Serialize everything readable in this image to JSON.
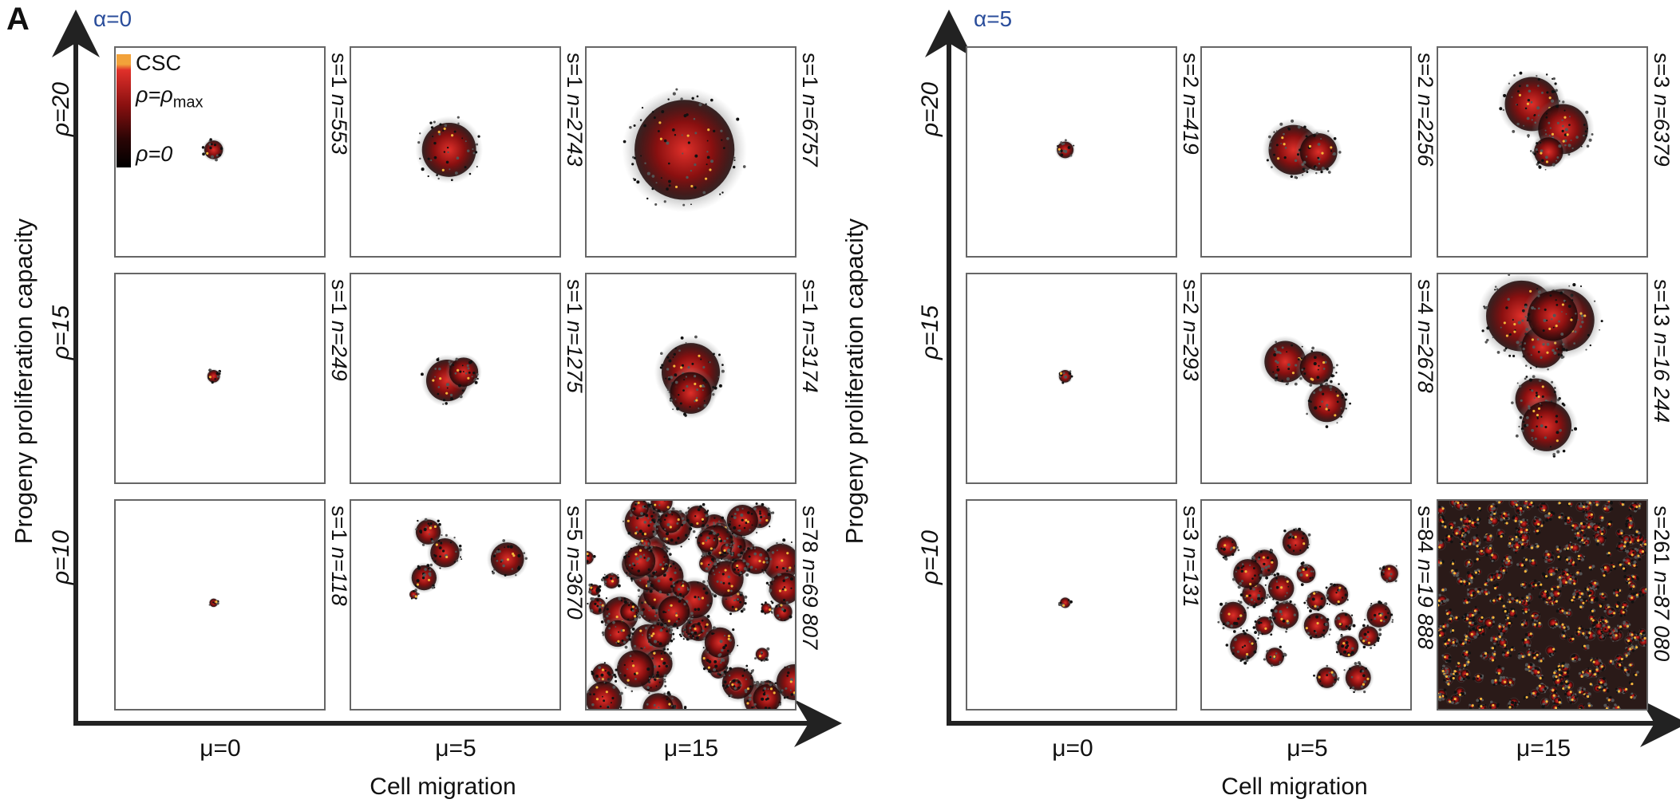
{
  "figure": {
    "panel_letter": "A",
    "legend": {
      "csc": "CSC",
      "rho_max_1": "ρ=ρ",
      "rho_max_sub": "max",
      "rho_zero": "ρ=0"
    },
    "panels": [
      {
        "alpha_label": "α=0",
        "y_axis_label": "Progeny proliferation capacity",
        "x_axis_label": "Cell migration",
        "col_labels": [
          "μ=0",
          "μ=5",
          "μ=15"
        ],
        "row_labels": [
          "ρ=20",
          "ρ=15",
          "ρ=10"
        ],
        "cells": [
          [
            {
              "s": "s=1",
              "n": "n=553"
            },
            {
              "s": "s=1",
              "n": "n=2743"
            },
            {
              "s": "s=1",
              "n": "n=6757"
            }
          ],
          [
            {
              "s": "s=1",
              "n": "n=249"
            },
            {
              "s": "s=1",
              "n": "n=1275"
            },
            {
              "s": "s=1",
              "n": "n=3174"
            }
          ],
          [
            {
              "s": "s=1",
              "n": "n=118"
            },
            {
              "s": "s=5",
              "n": "n=3670"
            },
            {
              "s": "s=78",
              "n": "n=69 807"
            }
          ]
        ]
      },
      {
        "alpha_label": "α=5",
        "y_axis_label": "Progeny proliferation capacity",
        "x_axis_label": "Cell migration",
        "col_labels": [
          "μ=0",
          "μ=5",
          "μ=15"
        ],
        "row_labels": [
          "ρ=20",
          "ρ=15",
          "ρ=10"
        ],
        "cells": [
          [
            {
              "s": "s=2",
              "n": "n=419"
            },
            {
              "s": "s=2",
              "n": "n=2256"
            },
            {
              "s": "s=3",
              "n": "n=6379"
            }
          ],
          [
            {
              "s": "s=2",
              "n": "n=293"
            },
            {
              "s": "s=4",
              "n": "n=2678"
            },
            {
              "s": "s=13",
              "n": "n=16 244"
            }
          ],
          [
            {
              "s": "s=3",
              "n": "n=131"
            },
            {
              "s": "s=84",
              "n": "n=19 888"
            },
            {
              "s": "s=261",
              "n": "n=87 080"
            }
          ]
        ]
      }
    ]
  }
}
